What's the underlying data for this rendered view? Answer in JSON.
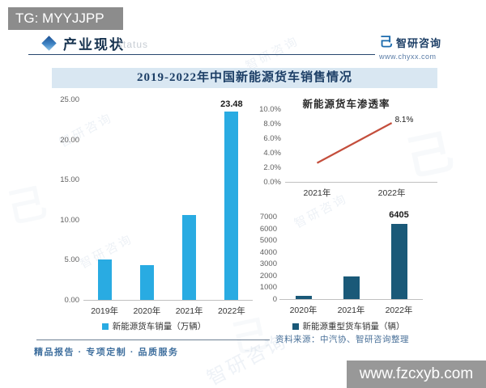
{
  "watermarks": {
    "tg": "TG: MYYJJPP",
    "site": "www.fzcxyb.com",
    "ghost": "智研咨询",
    "ghost_logo_glyph": "己"
  },
  "header": {
    "title": "产业现状",
    "ghost_text": "status",
    "brand": {
      "icon_glyph": "己",
      "name": "智研咨询",
      "url": "www.chyxx.com"
    }
  },
  "main_title": "2019-2022年中国新能源货车销售情况",
  "chart_data": [
    {
      "type": "bar",
      "title": "新能源货车销量",
      "categories": [
        "2019年",
        "2020年",
        "2021年",
        "2022年"
      ],
      "values": [
        5.0,
        4.3,
        10.6,
        23.48
      ],
      "data_labels": [
        "",
        "",
        "",
        "23.48"
      ],
      "ylim": [
        0,
        25
      ],
      "yticks": [
        "25.00",
        "20.00",
        "15.00",
        "10.00",
        "5.00",
        "0.00"
      ],
      "legend": "新能源货车销量（万辆）",
      "bar_color": "#29ABE2",
      "grid": false,
      "legend_position": "bottom"
    },
    {
      "type": "line",
      "title": "新能源货车渗透率",
      "categories": [
        "2021年",
        "2022年"
      ],
      "values": [
        2.6,
        8.1
      ],
      "data_labels": [
        "",
        "8.1%"
      ],
      "ylim": [
        0,
        10
      ],
      "yticks": [
        "10.0%",
        "8.0%",
        "6.0%",
        "4.0%",
        "2.0%",
        "0.0%"
      ],
      "line_color": "#C44E3C",
      "grid": false,
      "legend_position": "none"
    },
    {
      "type": "bar",
      "title": "新能源重型货车销量",
      "categories": [
        "2020年",
        "2021年",
        "2022年"
      ],
      "values": [
        250,
        1900,
        6405
      ],
      "data_labels": [
        "",
        "",
        "6405"
      ],
      "ylim": [
        0,
        7000
      ],
      "yticks": [
        "7000",
        "6000",
        "5000",
        "4000",
        "3000",
        "2000",
        "1000",
        "0"
      ],
      "legend": "新能源重型货车销量（辆）",
      "bar_color": "#1A5978",
      "grid": false,
      "legend_position": "bottom"
    }
  ],
  "source_note": "资料来源：中汽协、智研咨询整理",
  "footer": {
    "tagline": "精品报告 · 专项定制 · 品质服务"
  }
}
